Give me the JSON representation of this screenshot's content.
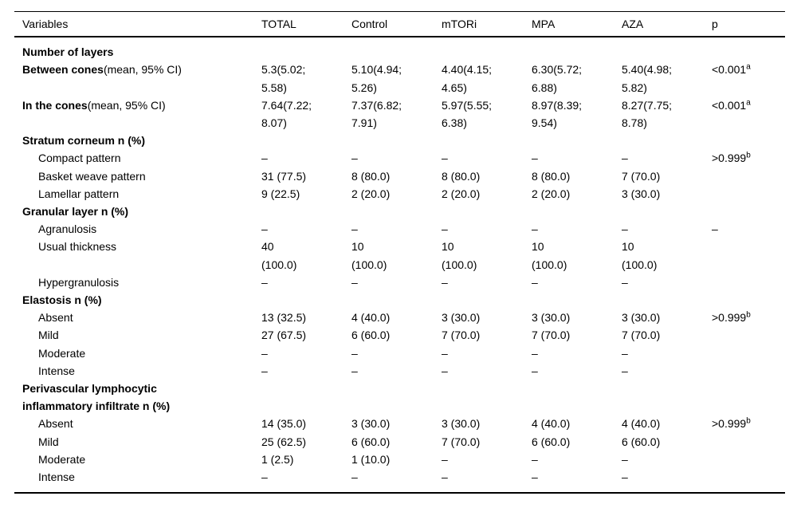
{
  "table": {
    "columns": [
      "Variables",
      "TOTAL",
      "Control",
      "mTORi",
      "MPA",
      "AZA",
      "p"
    ],
    "rows": [
      {
        "section": true,
        "label": "Number of layers"
      },
      {
        "bold_label": true,
        "label": "Between cones",
        "label_suffix": "(mean, 95% CI)",
        "values": [
          "5.3(5.02;\n5.58)",
          "5.10(4.94;\n5.26)",
          "4.40(4.15;\n4.65)",
          "6.30(5.72;\n6.88)",
          "5.40(4.98;\n5.82)"
        ],
        "p": {
          "text": "<0.001",
          "sup": "a"
        }
      },
      {
        "bold_label": true,
        "label": "In the cones",
        "label_suffix": "(mean, 95% CI)",
        "values": [
          "7.64(7.22;\n8.07)",
          "7.37(6.82;\n7.91)",
          "5.97(5.55;\n6.38)",
          "8.97(8.39;\n9.54)",
          "8.27(7.75;\n8.78)"
        ],
        "p": {
          "text": "<0.001",
          "sup": "a"
        }
      },
      {
        "section": true,
        "label": "Stratum corneum n (%)"
      },
      {
        "indent": true,
        "label": "Compact pattern",
        "values": [
          "–",
          "–",
          "–",
          "–",
          "–"
        ],
        "p": {
          "text": ">0.999",
          "sup": "b"
        }
      },
      {
        "indent": true,
        "label": "Basket weave pattern",
        "values": [
          "31 (77.5)",
          "8 (80.0)",
          "8 (80.0)",
          "8 (80.0)",
          "7 (70.0)"
        ]
      },
      {
        "indent": true,
        "label": "Lamellar pattern",
        "values": [
          "9 (22.5)",
          "2 (20.0)",
          "2 (20.0)",
          "2 (20.0)",
          "3 (30.0)"
        ]
      },
      {
        "section": true,
        "label": "Granular layer n (%)"
      },
      {
        "indent": true,
        "label": "Agranulosis",
        "values": [
          "–",
          "–",
          "–",
          "–",
          "–"
        ],
        "p": {
          "text": "–",
          "sup": ""
        }
      },
      {
        "indent": true,
        "label": "Usual thickness",
        "values": [
          "40\n(100.0)",
          "10\n(100.0)",
          "10\n(100.0)",
          "10\n(100.0)",
          "10\n(100.0)"
        ]
      },
      {
        "indent": true,
        "label": "Hypergranulosis",
        "values": [
          "–",
          "–",
          "–",
          "–",
          "–"
        ]
      },
      {
        "section": true,
        "label": "Elastosis n (%)"
      },
      {
        "indent": true,
        "label": "Absent",
        "values": [
          "13 (32.5)",
          "4 (40.0)",
          "3 (30.0)",
          "3 (30.0)",
          "3 (30.0)"
        ],
        "p": {
          "text": ">0.999",
          "sup": "b"
        }
      },
      {
        "indent": true,
        "label": "Mild",
        "values": [
          "27 (67.5)",
          "6 (60.0)",
          "7 (70.0)",
          "7 (70.0)",
          "7 (70.0)"
        ]
      },
      {
        "indent": true,
        "label": "Moderate",
        "values": [
          "–",
          "–",
          "–",
          "–",
          "–"
        ]
      },
      {
        "indent": true,
        "label": "Intense",
        "values": [
          "–",
          "–",
          "–",
          "–",
          "–"
        ]
      },
      {
        "section": true,
        "label": "Perivascular lymphocytic\ninflammatory infiltrate n (%)"
      },
      {
        "indent": true,
        "label": "Absent",
        "values": [
          "14 (35.0)",
          "3 (30.0)",
          "3 (30.0)",
          "4 (40.0)",
          "4 (40.0)"
        ],
        "p": {
          "text": ">0.999",
          "sup": "b"
        }
      },
      {
        "indent": true,
        "label": "Mild",
        "values": [
          "25 (62.5)",
          "6 (60.0)",
          "7 (70.0)",
          "6 (60.0)",
          "6 (60.0)"
        ]
      },
      {
        "indent": true,
        "label": "Moderate",
        "values": [
          "1 (2.5)",
          "1 (10.0)",
          "–",
          "–",
          "–"
        ]
      },
      {
        "indent": true,
        "label": "Intense",
        "values": [
          "–",
          "–",
          "–",
          "–",
          "–"
        ]
      }
    ]
  }
}
